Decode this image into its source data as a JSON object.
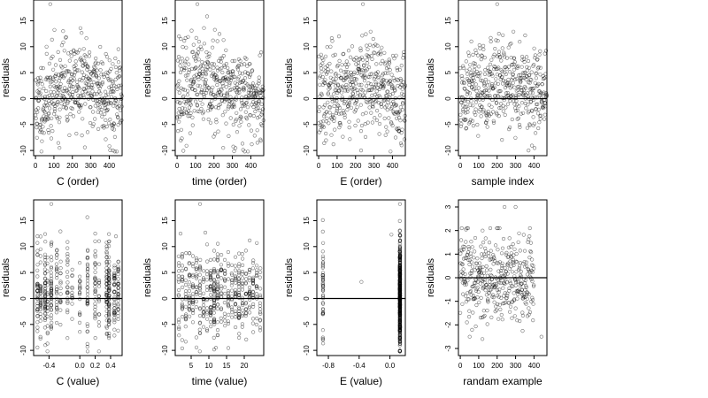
{
  "chart_data": [
    {
      "type": "scatter",
      "id": "c-order",
      "xlabel": "C (order)",
      "ylabel": "residuals",
      "xlim": [
        -10,
        470
      ],
      "ylim": [
        -11,
        19
      ],
      "xticks": [
        0,
        100,
        200,
        300,
        400
      ],
      "yticks": [
        -10,
        -5,
        0,
        5,
        10,
        15
      ],
      "hline": 0,
      "points": {
        "mode": "index",
        "n": 470,
        "base": [
          -2,
          2,
          3,
          2,
          -1
        ],
        "spread": 4.3,
        "seed": 11,
        "outliers": [
          [
            80,
            18.2
          ],
          [
            150,
            13
          ],
          [
            130,
            -9.5
          ],
          [
            420,
            -10
          ]
        ]
      }
    },
    {
      "type": "scatter",
      "id": "time-order",
      "xlabel": "time (order)",
      "ylabel": "residuals",
      "xlim": [
        -10,
        470
      ],
      "ylim": [
        -11,
        19
      ],
      "xticks": [
        0,
        100,
        200,
        300,
        400
      ],
      "yticks": [
        -10,
        -5,
        0,
        5,
        10,
        15
      ],
      "hline": 0,
      "points": {
        "mode": "index",
        "n": 470,
        "base": [
          1,
          3,
          2,
          1,
          -1
        ],
        "spread": 4.3,
        "seed": 23,
        "outliers": [
          [
            110,
            18.2
          ],
          [
            10,
            12
          ],
          [
            20,
            11.5
          ],
          [
            250,
            -9.5
          ]
        ]
      }
    },
    {
      "type": "scatter",
      "id": "e-order",
      "xlabel": "E (order)",
      "ylabel": "residuals",
      "xlim": [
        -10,
        470
      ],
      "ylim": [
        -11,
        19
      ],
      "xticks": [
        0,
        100,
        200,
        300,
        400
      ],
      "yticks": [
        -10,
        -5,
        0,
        5,
        10,
        15
      ],
      "hline": 0,
      "points": {
        "mode": "index",
        "n": 470,
        "base": [
          0,
          2,
          3,
          2,
          -1
        ],
        "spread": 4.3,
        "seed": 37,
        "outliers": [
          [
            240,
            18.2
          ],
          [
            110,
            12
          ],
          [
            230,
            -10
          ],
          [
            450,
            -9
          ]
        ]
      }
    },
    {
      "type": "scatter",
      "id": "sample-index",
      "xlabel": "sample index",
      "ylabel": "residuals",
      "xlim": [
        -10,
        470
      ],
      "ylim": [
        -11,
        19
      ],
      "xticks": [
        0,
        100,
        200,
        300,
        400
      ],
      "yticks": [
        -10,
        -5,
        0,
        5,
        10,
        15
      ],
      "hline": 0,
      "points": {
        "mode": "index",
        "n": 470,
        "base": [
          0,
          2,
          3,
          2,
          0
        ],
        "spread": 4.3,
        "seed": 51,
        "outliers": [
          [
            200,
            18.2
          ],
          [
            210,
            12.5
          ],
          [
            60,
            11
          ],
          [
            370,
            -10
          ]
        ]
      }
    },
    {
      "type": "scatter",
      "id": "c-value",
      "xlabel": "C (value)",
      "ylabel": "residuals",
      "xlim": [
        -0.6,
        0.55
      ],
      "ylim": [
        -11,
        19
      ],
      "xticks": [
        -0.4,
        0,
        0.2,
        0.4
      ],
      "xticklabels": [
        "-0.4",
        "0.0",
        "0.2",
        "0.4"
      ],
      "yticks": [
        -10,
        -5,
        0,
        5,
        10,
        15
      ],
      "hline": 0,
      "points": {
        "mode": "columns",
        "columns": [
          [
            -0.55,
            35
          ],
          [
            -0.51,
            30
          ],
          [
            -0.45,
            45
          ],
          [
            -0.42,
            20
          ],
          [
            -0.37,
            40
          ],
          [
            -0.3,
            25
          ],
          [
            -0.25,
            15
          ],
          [
            -0.16,
            22
          ],
          [
            -0.1,
            12
          ],
          [
            0,
            18
          ],
          [
            0.1,
            35
          ],
          [
            0.2,
            30
          ],
          [
            0.25,
            15
          ],
          [
            0.35,
            45
          ],
          [
            0.38,
            60
          ],
          [
            0.45,
            40
          ],
          [
            0.5,
            35
          ]
        ],
        "spread": 4.3,
        "seed": 67,
        "outliers": [
          [
            -0.37,
            18.2
          ],
          [
            -0.55,
            12
          ],
          [
            0.2,
            12.5
          ],
          [
            0.47,
            12
          ]
        ]
      }
    },
    {
      "type": "scatter",
      "id": "time-value",
      "xlabel": "time (value)",
      "ylabel": "residuals",
      "xlim": [
        0.5,
        25.5
      ],
      "ylim": [
        -11,
        19
      ],
      "xticks": [
        5,
        10,
        15,
        20
      ],
      "yticks": [
        -10,
        -5,
        0,
        5,
        10,
        15
      ],
      "hline": 0,
      "points": {
        "mode": "columns",
        "columns": [
          [
            1.5,
            15
          ],
          [
            2.5,
            20
          ],
          [
            3.5,
            18
          ],
          [
            4.5,
            22
          ],
          [
            5.5,
            20
          ],
          [
            6.5,
            18
          ],
          [
            7.5,
            22
          ],
          [
            8.5,
            18
          ],
          [
            9.5,
            15
          ],
          [
            10.5,
            30
          ],
          [
            11.5,
            40
          ],
          [
            12.5,
            30
          ],
          [
            13.5,
            18
          ],
          [
            14.5,
            15
          ],
          [
            15.5,
            18
          ],
          [
            16.5,
            15
          ],
          [
            17.5,
            22
          ],
          [
            18.5,
            30
          ],
          [
            19.5,
            20
          ],
          [
            20.5,
            18
          ],
          [
            21.5,
            20
          ],
          [
            22.5,
            22
          ],
          [
            23.5,
            15
          ],
          [
            24.5,
            15
          ]
        ],
        "spread": 4.3,
        "seed": 79,
        "outliers": [
          [
            7.5,
            18.2
          ],
          [
            2,
            12.5
          ],
          [
            9,
            12.7
          ],
          [
            12,
            -9.5
          ]
        ]
      }
    },
    {
      "type": "scatter",
      "id": "e-value",
      "xlabel": "E (value)",
      "ylabel": "residuals",
      "xlim": [
        -0.95,
        0.2
      ],
      "ylim": [
        -11,
        19
      ],
      "xticks": [
        -0.8,
        -0.4,
        0
      ],
      "xticklabels": [
        "-0.8",
        "-0.4",
        "0.0"
      ],
      "yticks": [
        -10,
        -5,
        0,
        5,
        10,
        15
      ],
      "hline": 0,
      "points": {
        "mode": "columns",
        "columns": [
          [
            -0.87,
            45
          ],
          [
            0.13,
            420
          ]
        ],
        "spread": 5.0,
        "seed": 97,
        "outliers": [
          [
            -0.37,
            3.2
          ],
          [
            0.02,
            12.3
          ],
          [
            0.13,
            18.2
          ],
          [
            0.13,
            -10
          ]
        ]
      }
    },
    {
      "type": "scatter",
      "id": "randam-example",
      "xlabel": "randam example",
      "ylabel": "residuals",
      "xlim": [
        -10,
        470
      ],
      "ylim": [
        -3.3,
        3.3
      ],
      "xticks": [
        0,
        100,
        200,
        300,
        400
      ],
      "yticks": [
        -3,
        -2,
        -1,
        0,
        1,
        2,
        3
      ],
      "hline": 0,
      "points": {
        "mode": "index",
        "n": 400,
        "base": [
          0,
          0,
          0,
          0,
          0
        ],
        "spread": 0.95,
        "seed": 113,
        "outliers": [
          [
            240,
            3.0
          ],
          [
            300,
            3.0
          ],
          [
            120,
            -2.6
          ],
          [
            440,
            -2.5
          ]
        ]
      }
    }
  ]
}
